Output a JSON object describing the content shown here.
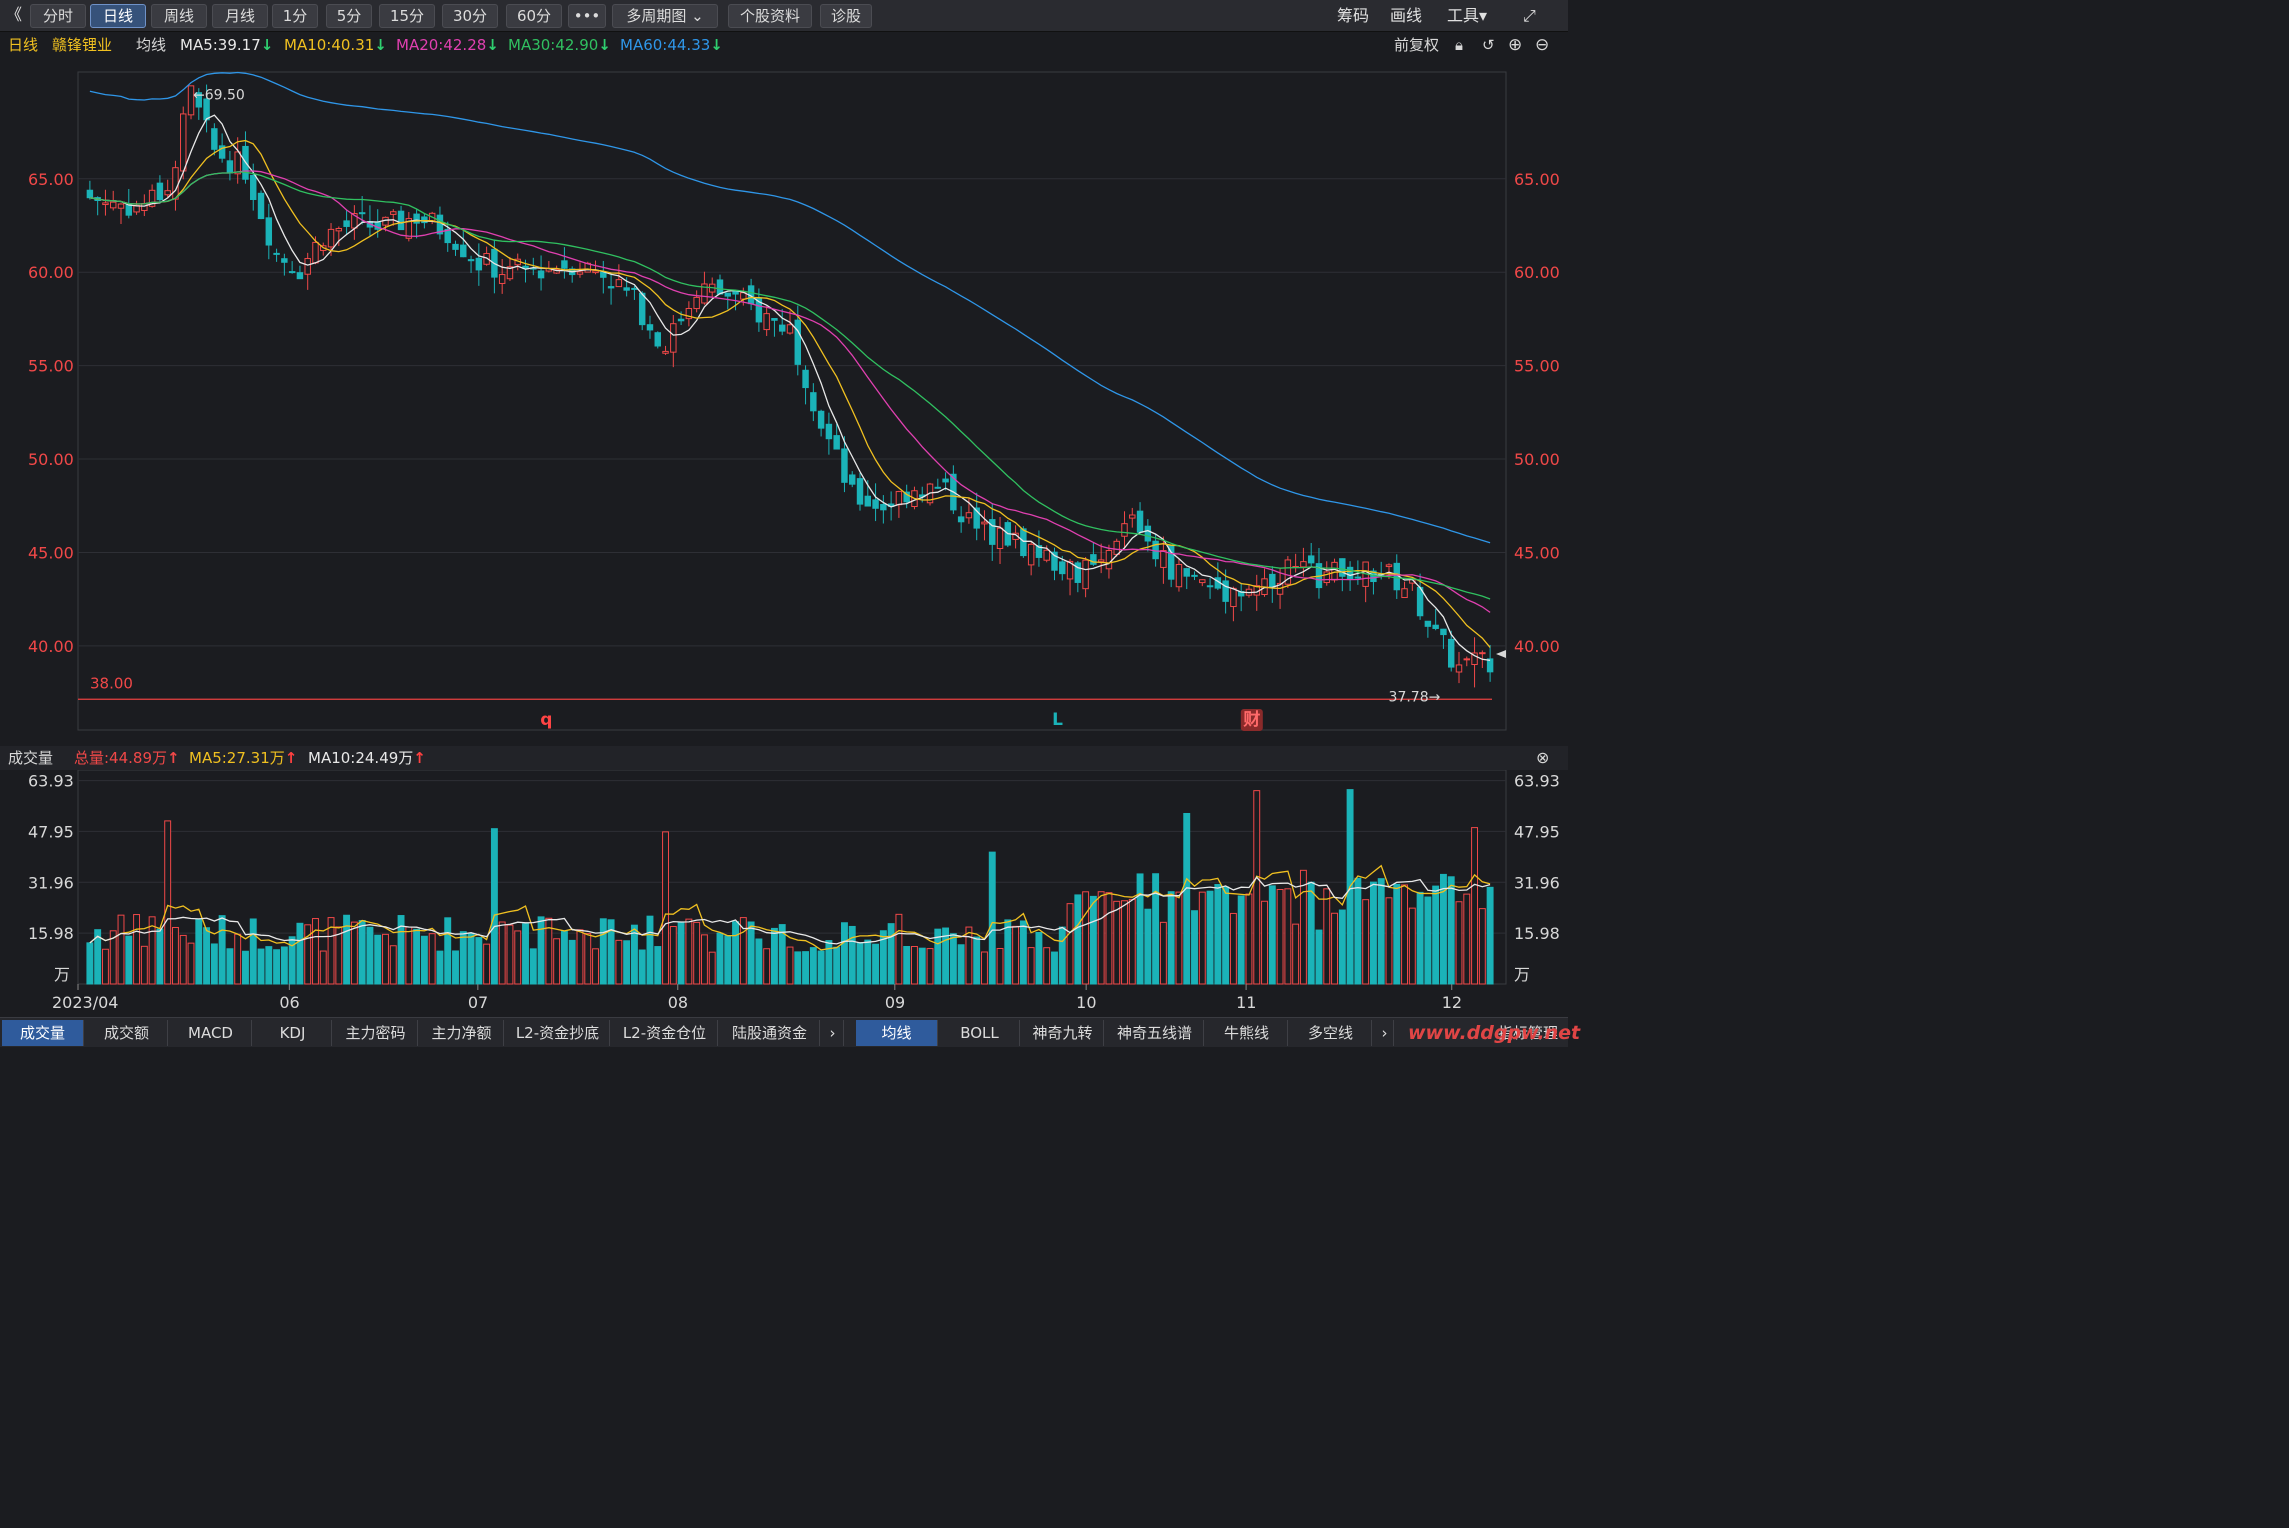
{
  "toolbar": {
    "back": "《",
    "tabs": [
      "分时",
      "日线",
      "周线",
      "月线",
      "1分",
      "5分",
      "15分",
      "30分",
      "60分",
      "•••",
      "多周期图 ⌄",
      "个股资料",
      "诊股"
    ],
    "active_tab": 1,
    "right_items": [
      "筹码",
      "画线",
      "工具▾",
      "⤢"
    ]
  },
  "header": {
    "period": "日线",
    "stock_name": "赣锋锂业",
    "ma_label": "均线",
    "ma_items": [
      {
        "text": "MA5:39.17",
        "arrow": "↓",
        "color": "#e8e8e8"
      },
      {
        "text": "MA10:40.31",
        "arrow": "↓",
        "color": "#f0c020"
      },
      {
        "text": "MA20:42.28",
        "arrow": "↓",
        "color": "#e040b0"
      },
      {
        "text": "MA30:42.90",
        "arrow": "↓",
        "color": "#30c060"
      },
      {
        "text": "MA60:44.33",
        "arrow": "↓",
        "color": "#2f96e8"
      }
    ],
    "restore": "前复权"
  },
  "colors": {
    "up": "#f04848",
    "down": "#1bb3b8",
    "ma5": "#e8e8e8",
    "ma10": "#f0c020",
    "ma20": "#e040b0",
    "ma30": "#30c060",
    "ma60": "#2f96e8",
    "arrow_down": "#2fd070",
    "arrow_up": "#ff4040"
  },
  "price_chart": {
    "ylim": [
      35.5,
      70.5
    ],
    "y_ticks": [
      "65.00",
      "60.00",
      "55.00",
      "50.00",
      "45.00",
      "40.00"
    ],
    "y_tick_values": [
      65,
      60,
      55,
      50,
      45,
      40
    ],
    "high_label": "←69.50",
    "low_label": "37.78→",
    "ref_line_label": "38.00",
    "ref_line_value": 38.0,
    "markers": [
      {
        "text": "q",
        "color": "#ff4444",
        "pos": 0.328
      },
      {
        "text": "L",
        "color": "#1bb3b8",
        "pos": 0.686
      },
      {
        "text": "财",
        "color": "#ff6a6a",
        "pos": 0.822
      }
    ]
  },
  "volume": {
    "label": "成交量",
    "total": "总量:44.89万",
    "ma5": "MA5:27.31万",
    "ma10": "MA10:24.49万",
    "up_arrow": "↑",
    "y_ticks": [
      "63.93",
      "47.95",
      "31.96",
      "15.98"
    ],
    "y_tick_values": [
      63.93,
      47.95,
      31.96,
      15.98
    ],
    "unit": "万"
  },
  "x_axis": {
    "labels": [
      "2023/04",
      "06",
      "07",
      "08",
      "09",
      "10",
      "11",
      "12"
    ],
    "positions": [
      0.0,
      0.148,
      0.28,
      0.42,
      0.572,
      0.706,
      0.818,
      0.962
    ]
  },
  "bottom_tabs": [
    "成交量",
    "成交额",
    "MACD",
    "KDJ",
    "主力密码",
    "主力净额",
    "L2-资金抄底",
    "L2-资金仓位",
    "陆股通资金"
  ],
  "bottom_tabs_right": [
    "均线",
    "BOLL",
    "神奇九转",
    "神奇五线谱",
    "牛熊线",
    "多空线"
  ],
  "indicator_manage": "指标管理",
  "watermark": "www.ddgpw.net",
  "chart_data": {
    "type": "candlestick",
    "title": "赣锋锂业 日线",
    "series_count": 5,
    "close_points": [
      [
        0,
        64.0
      ],
      [
        6,
        63.5
      ],
      [
        10,
        64.5
      ],
      [
        13,
        69.5
      ],
      [
        16,
        66.5
      ],
      [
        20,
        65.5
      ],
      [
        24,
        61.0
      ],
      [
        27,
        60.2
      ],
      [
        30,
        62.0
      ],
      [
        34,
        62.6
      ],
      [
        38,
        62.4
      ],
      [
        42,
        63.0
      ],
      [
        46,
        62.2
      ],
      [
        50,
        60.5
      ],
      [
        54,
        60.0
      ],
      [
        58,
        60.2
      ],
      [
        62,
        60.5
      ],
      [
        66,
        60.0
      ],
      [
        70,
        58.5
      ],
      [
        74,
        56.0
      ],
      [
        78,
        59.2
      ],
      [
        82,
        58.8
      ],
      [
        86,
        57.8
      ],
      [
        90,
        57.0
      ],
      [
        94,
        52.0
      ],
      [
        98,
        48.0
      ],
      [
        102,
        47.5
      ],
      [
        106,
        48.5
      ],
      [
        110,
        48.3
      ],
      [
        114,
        46.2
      ],
      [
        118,
        45.8
      ],
      [
        122,
        45.0
      ],
      [
        126,
        44.0
      ],
      [
        130,
        44.0
      ],
      [
        134,
        47.0
      ],
      [
        138,
        44.5
      ],
      [
        142,
        43.5
      ],
      [
        146,
        43.0
      ],
      [
        150,
        43.2
      ],
      [
        154,
        44.2
      ],
      [
        158,
        43.8
      ],
      [
        162,
        44.0
      ],
      [
        166,
        44.0
      ],
      [
        170,
        43.0
      ],
      [
        173,
        40.5
      ],
      [
        176,
        38.8
      ],
      [
        180,
        39.3
      ]
    ]
  }
}
